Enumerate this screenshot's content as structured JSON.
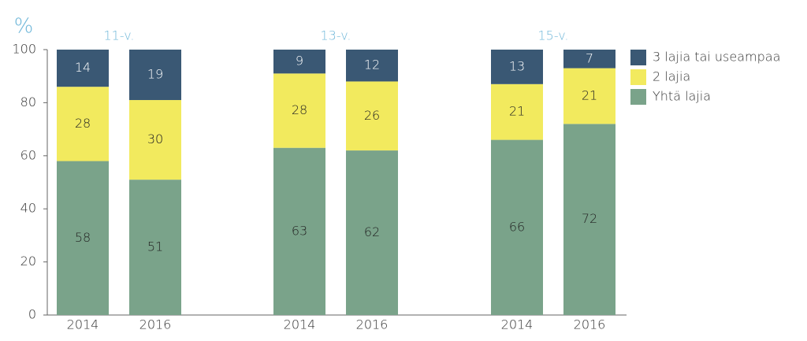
{
  "chart_data": {
    "type": "stacked-bar",
    "ylabel": "%",
    "groups": [
      "11-v.",
      "13-v.",
      "15-v."
    ],
    "categories": [
      "2014",
      "2016",
      "2014",
      "2016",
      "2014",
      "2016"
    ],
    "series": [
      {
        "name": "Yhtä lajia",
        "color": "#7aa38a",
        "values": [
          58,
          51,
          63,
          62,
          66,
          72
        ]
      },
      {
        "name": "2 lajia",
        "color": "#f2ea5e",
        "values": [
          28,
          30,
          28,
          26,
          21,
          21
        ]
      },
      {
        "name": "3 lajia tai useampaa",
        "color": "#3a5874",
        "values": [
          14,
          19,
          9,
          12,
          13,
          7
        ]
      }
    ],
    "ylim": [
      0,
      100
    ],
    "yticks": [
      0,
      20,
      40,
      60,
      80,
      100
    ],
    "legend": "right"
  }
}
